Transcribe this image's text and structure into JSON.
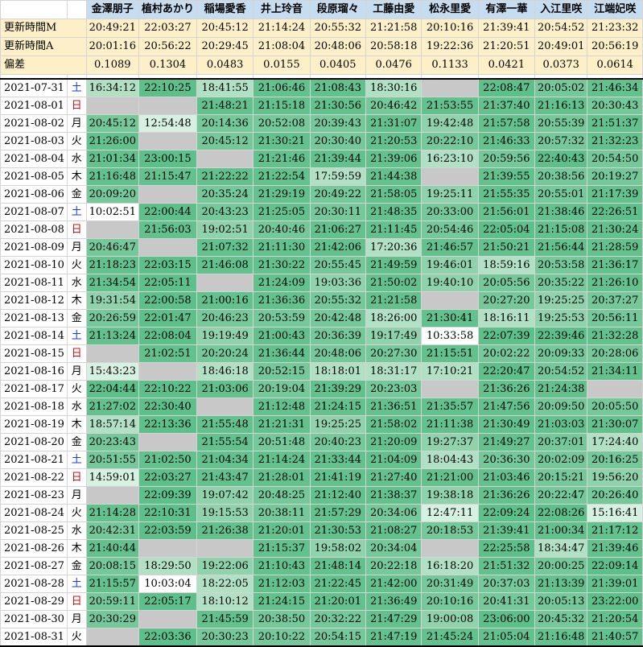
{
  "members": [
    "金澤朋子",
    "植村あかり",
    "稲場愛香",
    "井上玲音",
    "段原瑠々",
    "工藤由愛",
    "松永里愛",
    "有澤一華",
    "入江里咲",
    "江端妃咲"
  ],
  "meta": [
    {
      "label": "更新時間M",
      "values": [
        "20:49:21",
        "22:03:27",
        "20:45:12",
        "21:14:24",
        "20:55:32",
        "21:21:58",
        "20:10:16",
        "21:39:41",
        "20:54:52",
        "21:23:32"
      ]
    },
    {
      "label": "更新時間A",
      "values": [
        "20:01:16",
        "20:56:22",
        "20:29:45",
        "21:08:04",
        "20:48:06",
        "20:58:18",
        "19:22:36",
        "21:20:51",
        "20:49:01",
        "20:56:19"
      ]
    },
    {
      "label": "偏差",
      "values": [
        "0.1089",
        "0.1304",
        "0.0483",
        "0.0155",
        "0.0405",
        "0.0476",
        "0.1133",
        "0.0421",
        "0.0373",
        "0.0614"
      ]
    }
  ],
  "colors": {
    "grey": "#c8c8c8",
    "white": "#ffffff",
    "c1": "#5dbf8a",
    "c2": "#63c18e",
    "c3": "#75c89a",
    "c4": "#8fd2ab",
    "c5": "#b1e0c5",
    "c6": "#d6f0e1",
    "sat": "#1a3cd6",
    "sun": "#d01010"
  },
  "rows": [
    {
      "date": "2021-07-31",
      "dow": "土",
      "times": [
        "16:34:12",
        "22:10:25",
        "18:41:55",
        "21:06:46",
        "21:08:43",
        "18:30:16",
        "",
        "22:08:47",
        "20:05:02",
        "21:46:34"
      ]
    },
    {
      "date": "2021-08-01",
      "dow": "日",
      "times": [
        "",
        "",
        "21:48:21",
        "21:15:18",
        "21:30:56",
        "20:46:42",
        "21:53:55",
        "21:37:40",
        "21:16:13",
        "20:30:43"
      ]
    },
    {
      "date": "2021-08-02",
      "dow": "月",
      "times": [
        "20:45:12",
        "12:54:48",
        "20:14:36",
        "20:52:08",
        "20:39:43",
        "21:31:07",
        "19:42:48",
        "21:57:58",
        "20:55:39",
        "21:51:37"
      ]
    },
    {
      "date": "2021-08-03",
      "dow": "火",
      "times": [
        "21:26:00",
        "",
        "20:45:12",
        "21:30:21",
        "20:30:40",
        "21:20:53",
        "20:22:10",
        "21:46:33",
        "20:57:32",
        "21:32:23"
      ]
    },
    {
      "date": "2021-08-04",
      "dow": "水",
      "times": [
        "21:01:34",
        "23:00:15",
        "",
        "21:21:46",
        "21:39:44",
        "21:39:06",
        "16:23:10",
        "20:59:56",
        "22:40:43",
        "20:54:50"
      ]
    },
    {
      "date": "2021-08-05",
      "dow": "木",
      "times": [
        "21:16:48",
        "21:15:47",
        "21:22:22",
        "21:22:54",
        "17:59:59",
        "21:44:38",
        "",
        "21:39:55",
        "20:38:56",
        "20:19:27"
      ]
    },
    {
      "date": "2021-08-06",
      "dow": "金",
      "times": [
        "20:09:20",
        "",
        "20:35:24",
        "21:29:19",
        "20:49:22",
        "21:58:05",
        "19:25:11",
        "21:55:35",
        "20:55:01",
        "21:17:39"
      ]
    },
    {
      "date": "2021-08-07",
      "dow": "土",
      "times": [
        "10:02:51",
        "22:00:44",
        "20:43:23",
        "21:25:05",
        "20:30:11",
        "21:48:35",
        "20:33:00",
        "21:56:01",
        "21:38:46",
        "22:26:51"
      ]
    },
    {
      "date": "2021-08-08",
      "dow": "日",
      "times": [
        "",
        "21:56:03",
        "19:02:51",
        "20:40:46",
        "21:06:27",
        "21:11:45",
        "20:54:46",
        "22:05:04",
        "21:15:08",
        "21:30:24"
      ]
    },
    {
      "date": "2021-08-09",
      "dow": "月",
      "times": [
        "20:46:47",
        "",
        "21:07:32",
        "21:11:30",
        "21:42:06",
        "17:20:36",
        "21:46:57",
        "21:50:21",
        "21:56:44",
        "21:28:59"
      ]
    },
    {
      "date": "2021-08-10",
      "dow": "火",
      "times": [
        "21:18:23",
        "22:03:15",
        "21:46:08",
        "21:30:22",
        "20:55:45",
        "21:49:59",
        "19:46:01",
        "18:59:16",
        "20:53:58",
        "21:36:17"
      ]
    },
    {
      "date": "2021-08-11",
      "dow": "水",
      "times": [
        "21:34:54",
        "22:05:11",
        "",
        "21:24:09",
        "19:03:36",
        "21:50:02",
        "19:40:10",
        "20:05:56",
        "20:35:22",
        "21:26:10"
      ]
    },
    {
      "date": "2021-08-12",
      "dow": "木",
      "times": [
        "19:31:54",
        "22:00:58",
        "21:00:16",
        "21:36:36",
        "20:55:32",
        "21:21:58",
        "",
        "20:27:20",
        "19:25:25",
        "20:37:27"
      ]
    },
    {
      "date": "2021-08-13",
      "dow": "金",
      "times": [
        "20:26:59",
        "22:01:47",
        "20:46:23",
        "20:53:59",
        "20:42:48",
        "18:26:00",
        "21:30:41",
        "18:16:11",
        "19:25:53",
        "20:56:11"
      ]
    },
    {
      "date": "2021-08-14",
      "dow": "土",
      "times": [
        "21:13:24",
        "22:08:04",
        "19:19:49",
        "21:00:43",
        "20:36:39",
        "19:17:49",
        "10:33:58",
        "22:07:39",
        "22:39:46",
        "21:32:28"
      ]
    },
    {
      "date": "2021-08-15",
      "dow": "日",
      "times": [
        "",
        "21:02:51",
        "20:20:24",
        "21:36:44",
        "20:48:06",
        "20:27:30",
        "21:15:51",
        "20:02:22",
        "20:09:33",
        "20:28:06"
      ]
    },
    {
      "date": "2021-08-16",
      "dow": "月",
      "times": [
        "15:43:23",
        "",
        "18:46:18",
        "20:52:15",
        "18:18:01",
        "18:31:17",
        "17:10:21",
        "22:20:47",
        "20:54:52",
        "21:34:11"
      ]
    },
    {
      "date": "2021-08-17",
      "dow": "火",
      "times": [
        "22:04:44",
        "22:10:22",
        "21:03:06",
        "20:19:04",
        "21:39:29",
        "20:23:03",
        "",
        "21:36:26",
        "21:24:38",
        ""
      ]
    },
    {
      "date": "2021-08-18",
      "dow": "水",
      "times": [
        "21:27:02",
        "22:30:40",
        "",
        "21:12:48",
        "21:24:15",
        "21:36:51",
        "21:35:57",
        "21:47:56",
        "20:09:50",
        "20:05:50"
      ]
    },
    {
      "date": "2021-08-19",
      "dow": "木",
      "times": [
        "18:57:14",
        "22:13:36",
        "21:55:48",
        "21:21:31",
        "19:25:25",
        "21:58:02",
        "21:11:38",
        "21:30:49",
        "21:03:03",
        "21:30:07"
      ]
    },
    {
      "date": "2021-08-20",
      "dow": "金",
      "times": [
        "20:23:43",
        "",
        "21:55:54",
        "20:51:48",
        "20:40:23",
        "21:20:09",
        "19:27:37",
        "21:49:27",
        "20:37:01",
        "17:24:40"
      ]
    },
    {
      "date": "2021-08-21",
      "dow": "土",
      "times": [
        "20:51:55",
        "21:02:50",
        "21:04:34",
        "21:14:24",
        "21:33:44",
        "21:04:09",
        "18:04:43",
        "20:36:30",
        "20:02:09",
        "20:16:25"
      ]
    },
    {
      "date": "2021-08-22",
      "dow": "日",
      "times": [
        "14:59:01",
        "22:03:27",
        "21:43:47",
        "21:28:01",
        "21:41:19",
        "21:27:40",
        "21:21:00",
        "21:03:46",
        "20:15:21",
        "19:56:20"
      ]
    },
    {
      "date": "2021-08-23",
      "dow": "月",
      "times": [
        "",
        "22:09:39",
        "19:07:42",
        "20:48:25",
        "21:12:40",
        "21:38:37",
        "19:38:18",
        "21:36:26",
        "20:22:47",
        "20:26:40"
      ]
    },
    {
      "date": "2021-08-24",
      "dow": "火",
      "times": [
        "21:14:28",
        "22:10:31",
        "19:15:53",
        "20:38:11",
        "21:57:29",
        "20:34:06",
        "12:47:11",
        "22:09:24",
        "22:08:26",
        "15:16:41"
      ]
    },
    {
      "date": "2021-08-25",
      "dow": "水",
      "times": [
        "20:42:31",
        "22:03:59",
        "21:26:38",
        "21:20:01",
        "21:30:53",
        "21:08:27",
        "20:18:53",
        "21:39:41",
        "21:00:34",
        "21:17:12"
      ]
    },
    {
      "date": "2021-08-26",
      "dow": "木",
      "times": [
        "21:40:44",
        "",
        "",
        "21:15:37",
        "19:58:02",
        "20:34:04",
        "",
        "22:25:58",
        "18:34:47",
        "21:39:46"
      ]
    },
    {
      "date": "2021-08-27",
      "dow": "金",
      "times": [
        "20:08:15",
        "18:29:50",
        "19:22:06",
        "21:10:43",
        "21:48:14",
        "20:22:18",
        "16:18:20",
        "21:51:32",
        "20:00:25",
        "22:09:14"
      ]
    },
    {
      "date": "2021-08-28",
      "dow": "土",
      "times": [
        "21:15:57",
        "10:03:04",
        "18:22:05",
        "21:12:03",
        "21:22:45",
        "21:42:00",
        "20:31:49",
        "20:37:03",
        "21:13:39",
        "21:39:01"
      ]
    },
    {
      "date": "2021-08-29",
      "dow": "日",
      "times": [
        "20:59:11",
        "22:05:17",
        "18:10:12",
        "21:24:15",
        "21:20:01",
        "21:36:49",
        "20:10:16",
        "20:41:31",
        "20:05:13",
        "23:22:00"
      ]
    },
    {
      "date": "2021-08-30",
      "dow": "月",
      "times": [
        "20:30:29",
        "",
        "21:45:59",
        "20:38:50",
        "20:32:22",
        "21:47:29",
        "19:00:08",
        "23:06:00",
        "20:45:32",
        "21:20:54"
      ]
    },
    {
      "date": "2021-08-31",
      "dow": "火",
      "times": [
        "",
        "22:03:36",
        "20:30:23",
        "20:10:22",
        "20:54:15",
        "21:47:19",
        "21:45:24",
        "21:05:04",
        "21:16:48",
        "21:40:57"
      ]
    }
  ]
}
